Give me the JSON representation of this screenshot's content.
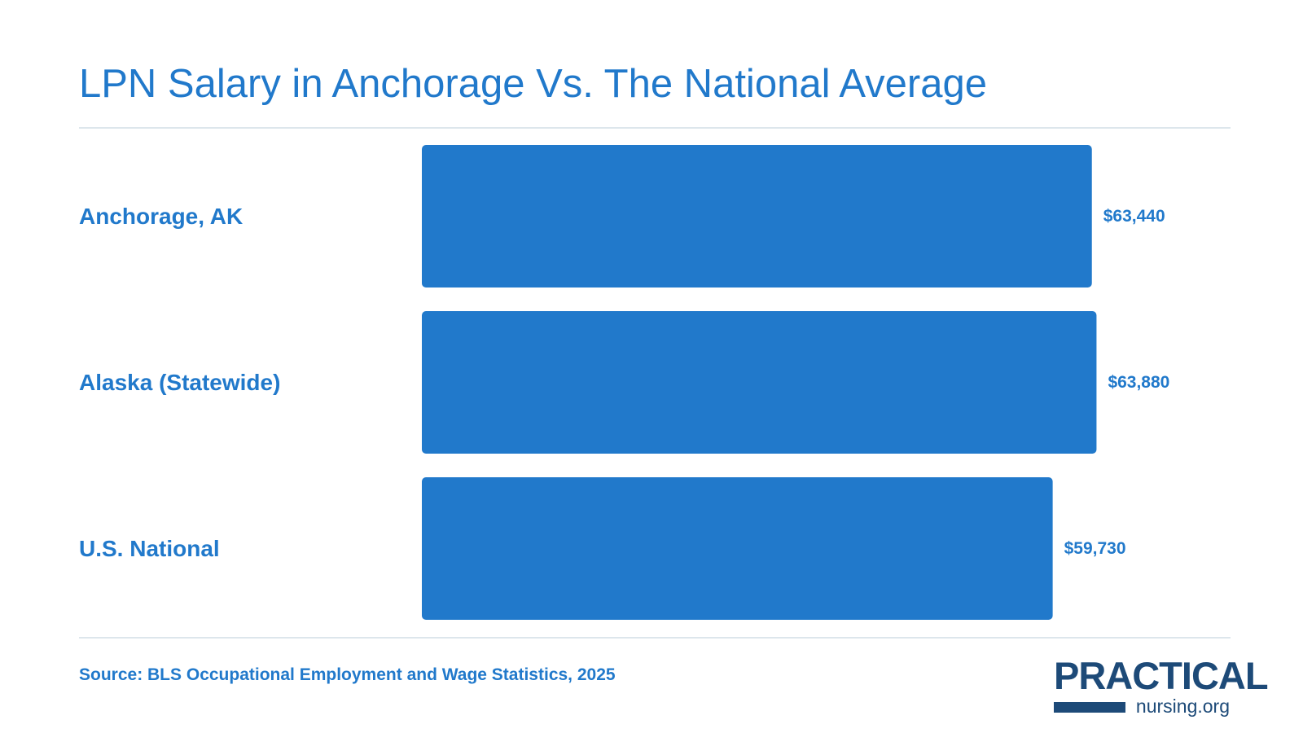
{
  "chart_data": {
    "type": "bar",
    "orientation": "horizontal",
    "title": "LPN Salary in Anchorage Vs. The National Average",
    "categories": [
      "Anchorage, AK",
      "Alaska (Statewide)",
      "U.S. National"
    ],
    "values": [
      63440,
      63880,
      59730
    ],
    "value_labels": [
      "$63,440",
      "$63,880",
      "$59,730"
    ],
    "xlim": [
      0,
      64000
    ],
    "grid": false,
    "colors": {
      "bar": "#2179cb",
      "text": "#2179cb",
      "rule": "#dde6ec"
    }
  },
  "source": "Source: BLS Occupational Employment and Wage Statistics, 2025",
  "logo": {
    "primary": "PRACTICAL",
    "secondary": "nursing.org",
    "color": "#1d4a78"
  }
}
